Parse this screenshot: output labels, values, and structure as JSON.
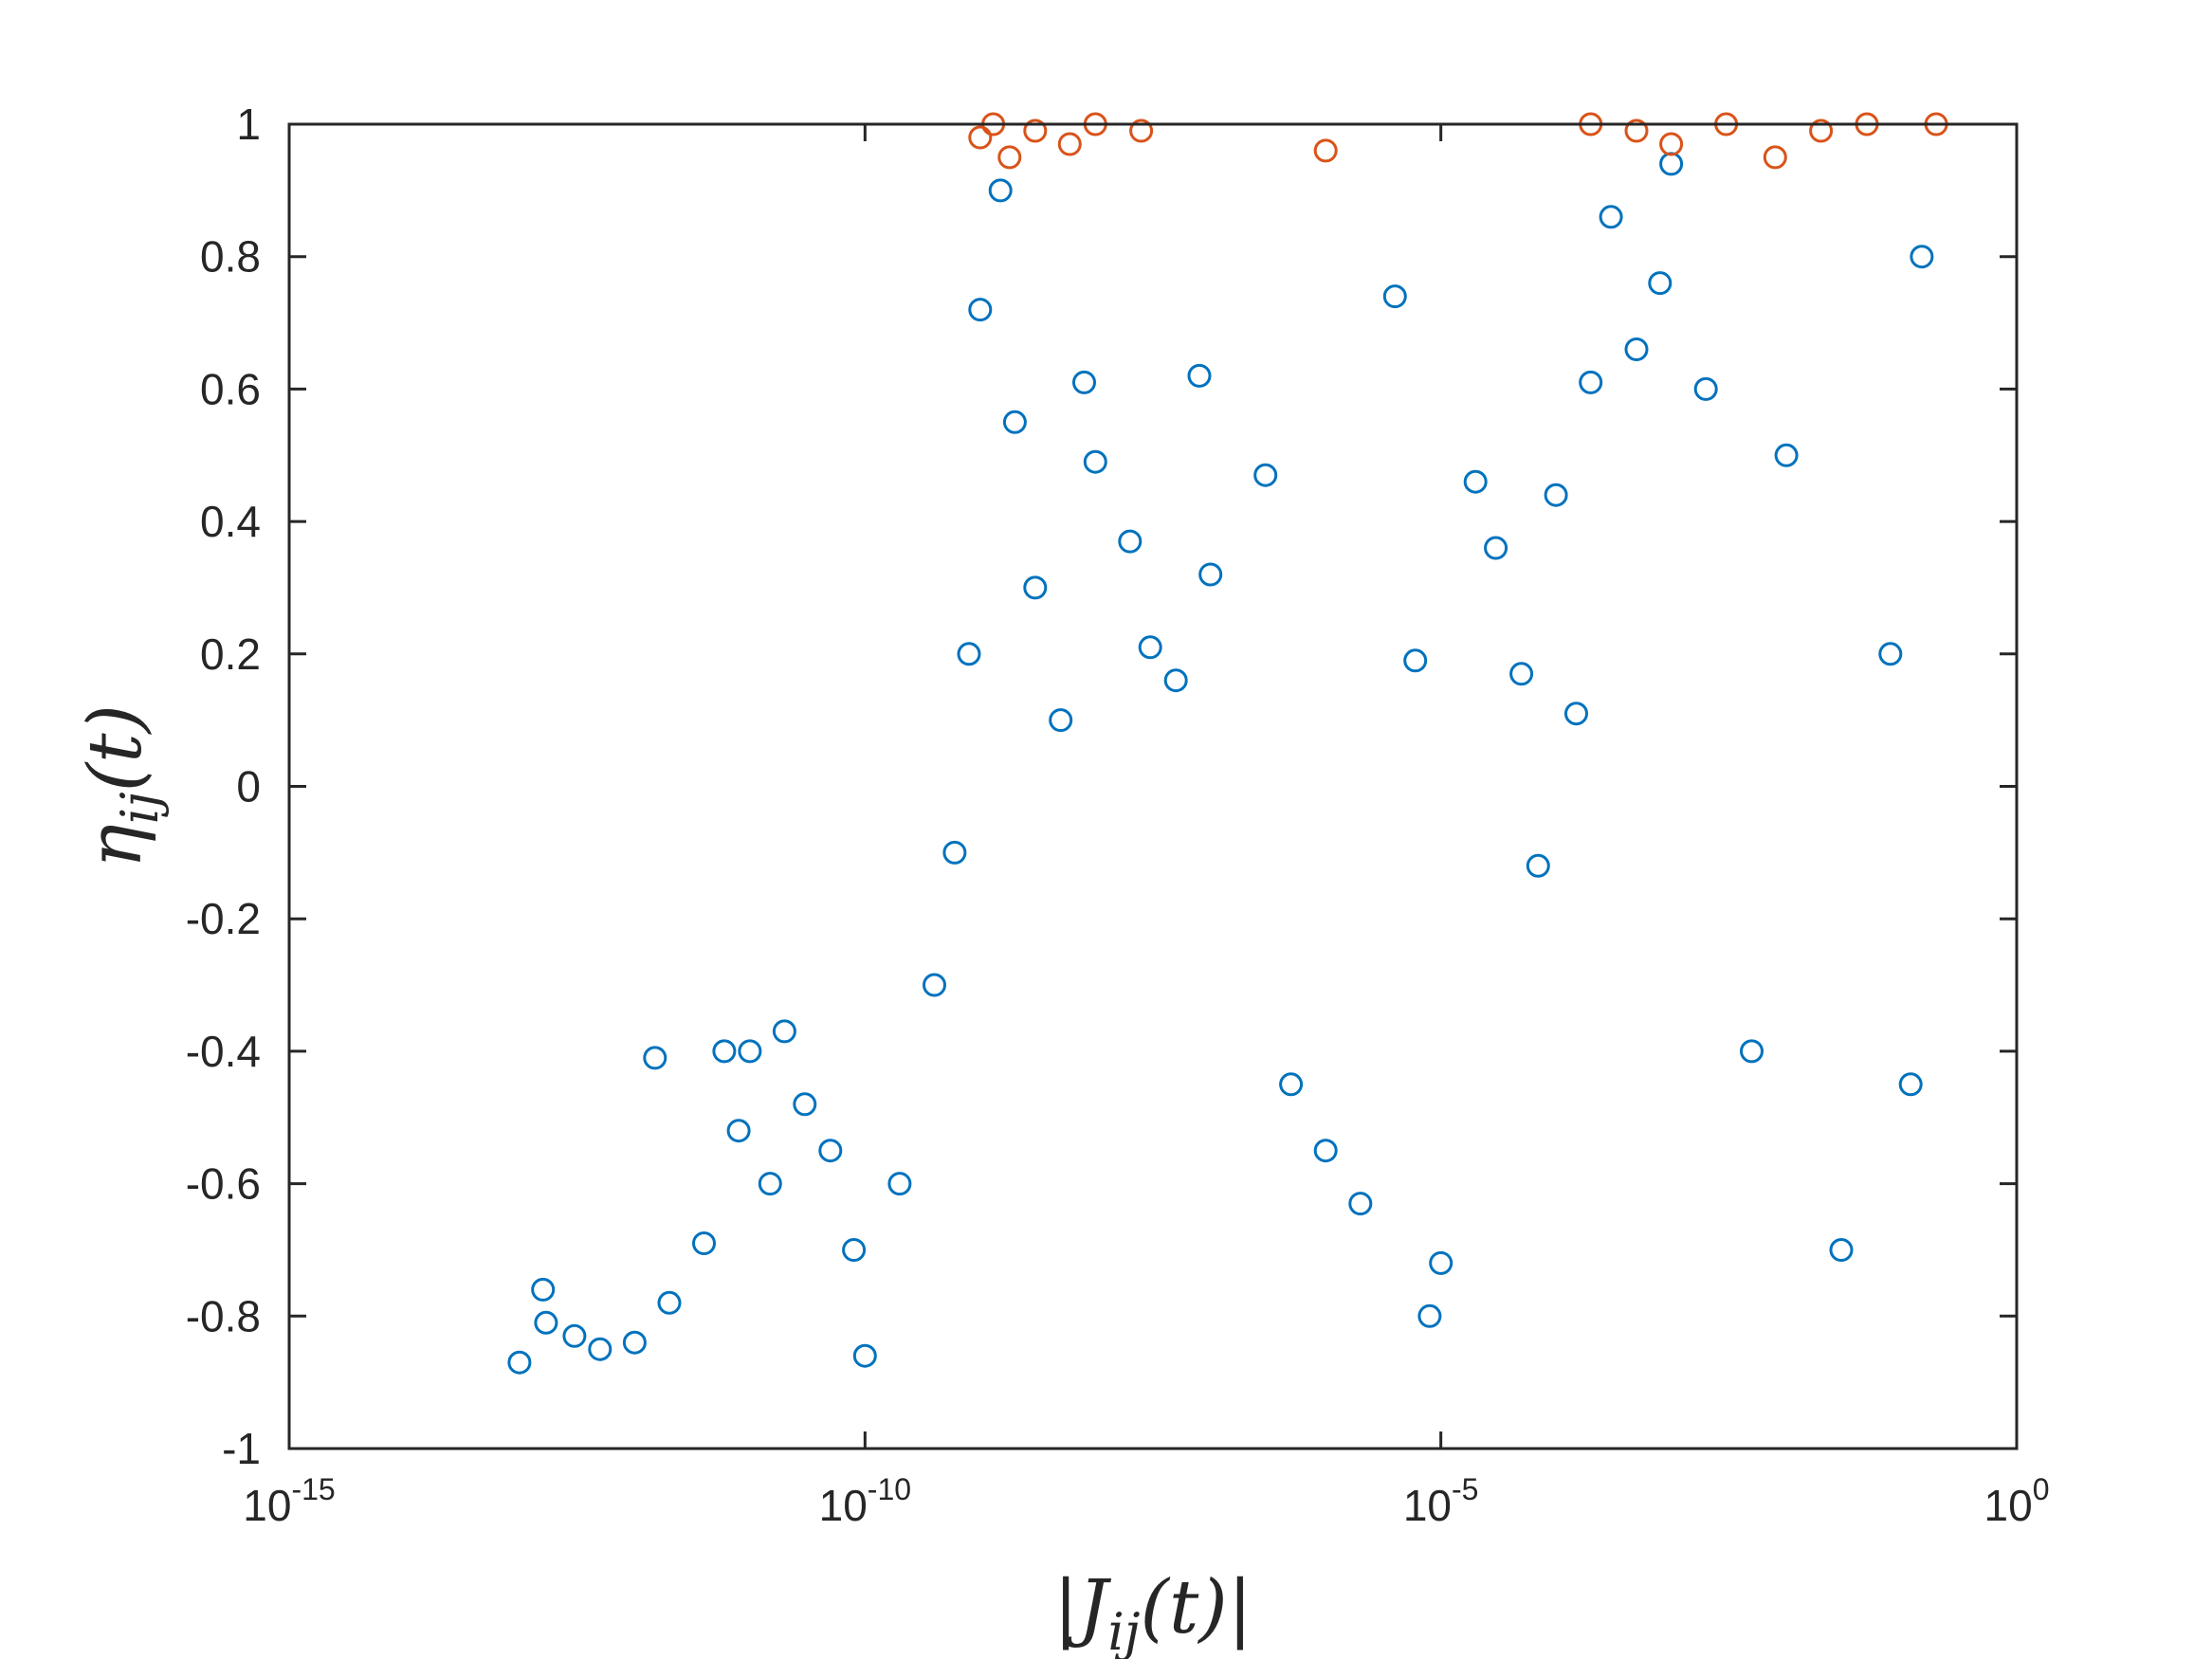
{
  "chart_data": {
    "type": "scatter",
    "xlabel": "|J_ij(t)|",
    "ylabel": "η_ij(t)",
    "xscale": "log",
    "xlim": [
      1e-15,
      1
    ],
    "ylim": [
      -1,
      1
    ],
    "x_tick_labels": [
      {
        "base": "10",
        "exp": "-15"
      },
      {
        "base": "10",
        "exp": "-10"
      },
      {
        "base": "10",
        "exp": "-5"
      },
      {
        "base": "10",
        "exp": "0"
      }
    ],
    "y_tick_labels": [
      "-1",
      "-0.8",
      "-0.6",
      "-0.4",
      "-0.2",
      "0",
      "0.2",
      "0.4",
      "0.6",
      "0.8",
      "1"
    ],
    "grid": false,
    "marker": "open circle",
    "colors": {
      "series_main": "#0072BD",
      "series_top": "#D95319"
    },
    "series": [
      {
        "color": "#0072BD",
        "points": [
          [
            1e-13,
            -0.87
          ],
          [
            1.6e-13,
            -0.76
          ],
          [
            1.7e-13,
            -0.81
          ],
          [
            3e-13,
            -0.83
          ],
          [
            5e-13,
            -0.85
          ],
          [
            1e-12,
            -0.84
          ],
          [
            1.5e-12,
            -0.41
          ],
          [
            2e-12,
            -0.78
          ],
          [
            4e-12,
            -0.69
          ],
          [
            6e-12,
            -0.4
          ],
          [
            8e-12,
            -0.52
          ],
          [
            1e-11,
            -0.4
          ],
          [
            1.5e-11,
            -0.6
          ],
          [
            2e-11,
            -0.37
          ],
          [
            3e-11,
            -0.48
          ],
          [
            5e-11,
            -0.55
          ],
          [
            8e-11,
            -0.7
          ],
          [
            1e-10,
            -0.86
          ],
          [
            2e-10,
            -0.6
          ],
          [
            4e-10,
            -0.3
          ],
          [
            6e-10,
            -0.1
          ],
          [
            8e-10,
            0.2
          ],
          [
            1e-09,
            0.72
          ],
          [
            1.5e-09,
            0.9
          ],
          [
            2e-09,
            0.55
          ],
          [
            3e-09,
            0.3
          ],
          [
            5e-09,
            0.1
          ],
          [
            8e-09,
            0.61
          ],
          [
            1e-08,
            0.49
          ],
          [
            2e-08,
            0.37
          ],
          [
            3e-08,
            0.21
          ],
          [
            5e-08,
            0.16
          ],
          [
            8e-08,
            0.62
          ],
          [
            1e-07,
            0.32
          ],
          [
            3e-07,
            0.47
          ],
          [
            5e-07,
            -0.45
          ],
          [
            1e-06,
            -0.55
          ],
          [
            2e-06,
            -0.63
          ],
          [
            4e-06,
            0.74
          ],
          [
            6e-06,
            0.19
          ],
          [
            8e-06,
            -0.8
          ],
          [
            1e-05,
            -0.72
          ],
          [
            2e-05,
            0.46
          ],
          [
            3e-05,
            0.36
          ],
          [
            5e-05,
            0.17
          ],
          [
            7e-05,
            -0.12
          ],
          [
            0.0001,
            0.44
          ],
          [
            0.00015,
            0.11
          ],
          [
            0.0002,
            0.61
          ],
          [
            0.0003,
            0.86
          ],
          [
            0.0005,
            0.66
          ],
          [
            0.0008,
            0.76
          ],
          [
            0.001,
            0.94
          ],
          [
            0.002,
            0.6
          ],
          [
            0.005,
            -0.4
          ],
          [
            0.01,
            0.5
          ],
          [
            0.03,
            -0.7
          ],
          [
            0.08,
            0.2
          ],
          [
            0.12,
            -0.45
          ],
          [
            0.15,
            0.8
          ]
        ]
      },
      {
        "color": "#D95319",
        "points": [
          [
            1e-09,
            0.98
          ],
          [
            1.3e-09,
            1.0
          ],
          [
            1.8e-09,
            0.95
          ],
          [
            3e-09,
            0.99
          ],
          [
            6e-09,
            0.97
          ],
          [
            1e-08,
            1.0
          ],
          [
            2.5e-08,
            0.99
          ],
          [
            1e-06,
            0.96
          ],
          [
            0.0002,
            1.0
          ],
          [
            0.0005,
            0.99
          ],
          [
            0.001,
            0.97
          ],
          [
            0.003,
            1.0
          ],
          [
            0.008,
            0.95
          ],
          [
            0.02,
            0.99
          ],
          [
            0.05,
            1.0
          ],
          [
            0.2,
            1.0
          ]
        ]
      }
    ]
  }
}
